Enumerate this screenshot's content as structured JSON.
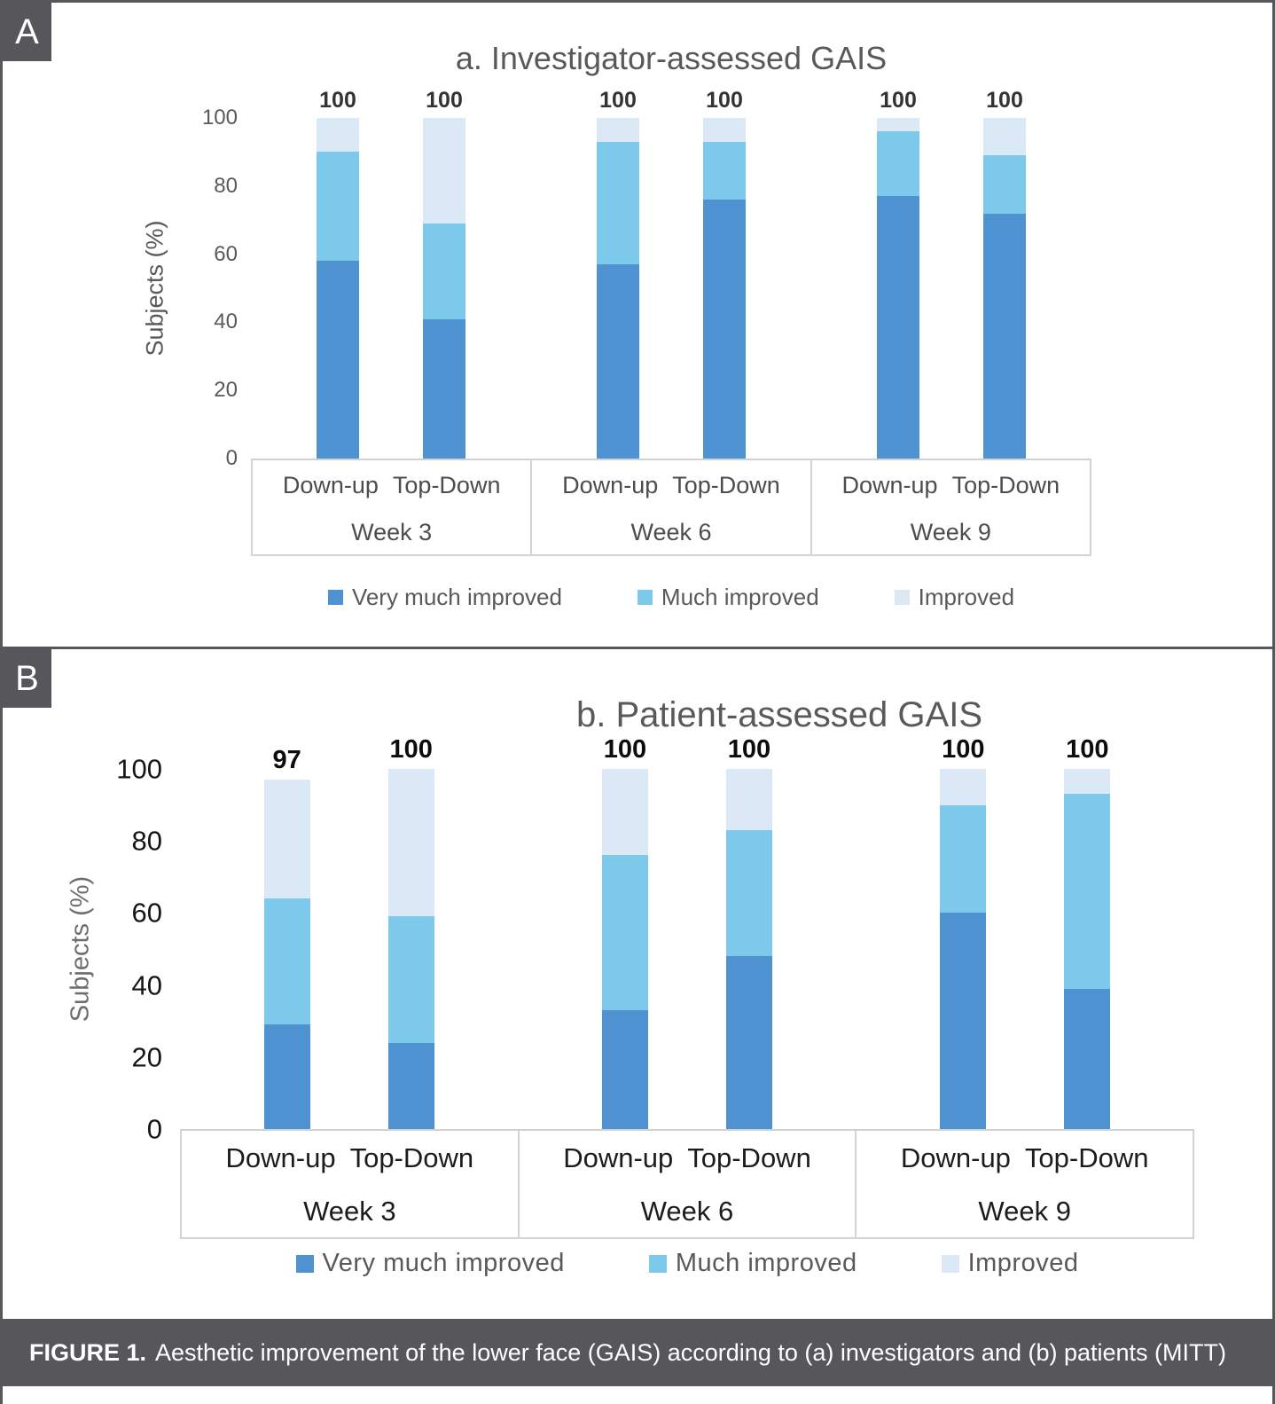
{
  "figure": {
    "badge_a": "A",
    "badge_b": "B",
    "caption_prefix": "FIGURE 1.",
    "caption_text": "Aesthetic improvement of the lower face (GAIS) according to (a) investigators and (b) patients (MITT)"
  },
  "colors": {
    "series_colors": [
      "#4f92d1",
      "#7dc9eb",
      "#dbe8f6"
    ],
    "very_much_improved": "#4f92d1",
    "much_improved": "#7dc9eb",
    "improved": "#dbe8f6",
    "axis_text": "#595959",
    "frame": "#57565a",
    "caption_bg": "#57565a"
  },
  "chart_data": [
    {
      "id": "investigator-assessed-gais",
      "type": "bar",
      "stacked": true,
      "title": "a. Investigator-assessed GAIS",
      "xlabel": "",
      "ylabel": "Subjects (%)",
      "ylim": [
        0,
        100
      ],
      "yticks": [
        100,
        80,
        60,
        40,
        20,
        0
      ],
      "grid": false,
      "legend_position": "bottom",
      "groups": [
        "Week 3",
        "Week 6",
        "Week 9"
      ],
      "bar_labels": [
        "Down-up",
        "Top-Down"
      ],
      "legend": [
        "Very much improved",
        "Much improved",
        "Improved"
      ],
      "series": [
        {
          "name": "Very much improved",
          "values": [
            58,
            41,
            57,
            76,
            77,
            72
          ]
        },
        {
          "name": "Much improved",
          "values": [
            32,
            28,
            36,
            17,
            19,
            17
          ]
        },
        {
          "name": "Improved",
          "values": [
            10,
            31,
            7,
            7,
            4,
            11
          ]
        }
      ],
      "totals": [
        100,
        100,
        100,
        100,
        100,
        100
      ]
    },
    {
      "id": "patient-assessed-gais",
      "type": "bar",
      "stacked": true,
      "title": "b. Patient-assessed GAIS",
      "xlabel": "",
      "ylabel": "Subjects (%)",
      "ylim": [
        0,
        100
      ],
      "yticks": [
        100,
        80,
        60,
        40,
        20,
        0
      ],
      "grid": false,
      "legend_position": "bottom",
      "groups": [
        "Week 3",
        "Week 6",
        "Week 9"
      ],
      "bar_labels": [
        "Down-up",
        "Top-Down"
      ],
      "legend": [
        "Very much improved",
        "Much improved",
        "Improved"
      ],
      "series": [
        {
          "name": "Very much improved",
          "values": [
            29,
            24,
            33,
            48,
            60,
            39
          ]
        },
        {
          "name": "Much improved",
          "values": [
            35,
            35,
            43,
            35,
            30,
            54
          ]
        },
        {
          "name": "Improved",
          "values": [
            33,
            41,
            24,
            17,
            10,
            7
          ]
        }
      ],
      "totals": [
        97,
        100,
        100,
        100,
        100,
        100
      ]
    }
  ]
}
